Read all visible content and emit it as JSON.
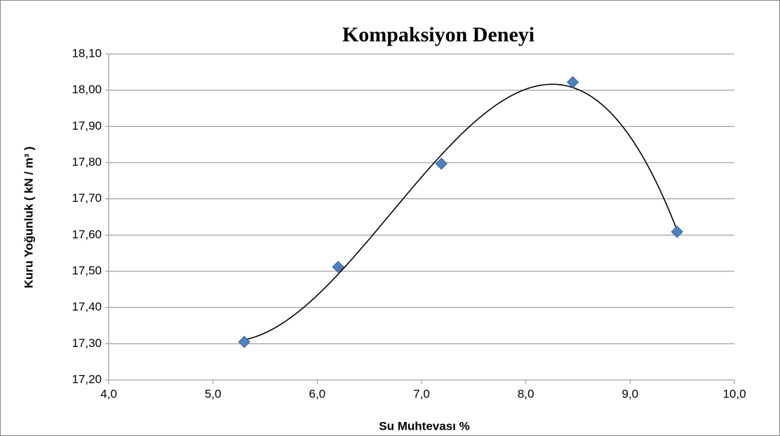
{
  "chart_data": {
    "type": "scatter",
    "title": "Kompaksiyon Deneyi",
    "x_label": "Su Muhtevası %",
    "y_label": "Kuru Yoğunluk ( kN / m³ )",
    "series": [
      {
        "x": [
          5.3,
          6.2,
          7.19,
          8.45,
          9.45
        ],
        "values": [
          17.305,
          17.512,
          17.797,
          18.022,
          17.609
        ],
        "color": "#4f81bd"
      }
    ],
    "trendline": {
      "type": "polynomial",
      "order": 3,
      "color": "#000000"
    },
    "xlim": [
      4.0,
      10.0
    ],
    "xticks": [
      {
        "value": 4.0,
        "label": "4,0"
      },
      {
        "value": 5.0,
        "label": "5,0"
      },
      {
        "value": 6.0,
        "label": "6,0"
      },
      {
        "value": 7.0,
        "label": "7,0"
      },
      {
        "value": 8.0,
        "label": "8,0"
      },
      {
        "value": 9.0,
        "label": "9,0"
      },
      {
        "value": 10.0,
        "label": "10,0"
      }
    ],
    "ylim": [
      17.2,
      18.1
    ],
    "yticks": [
      {
        "value": 17.2,
        "label": "17,20"
      },
      {
        "value": 17.3,
        "label": "17,30"
      },
      {
        "value": 17.4,
        "label": "17,40"
      },
      {
        "value": 17.5,
        "label": "17,50"
      },
      {
        "value": 17.6,
        "label": "17,60"
      },
      {
        "value": 17.7,
        "label": "17,70"
      },
      {
        "value": 17.8,
        "label": "17,80"
      },
      {
        "value": 17.9,
        "label": "17,90"
      },
      {
        "value": 18.0,
        "label": "18,00"
      },
      {
        "value": 18.1,
        "label": "18,10"
      }
    ],
    "grid": true
  }
}
